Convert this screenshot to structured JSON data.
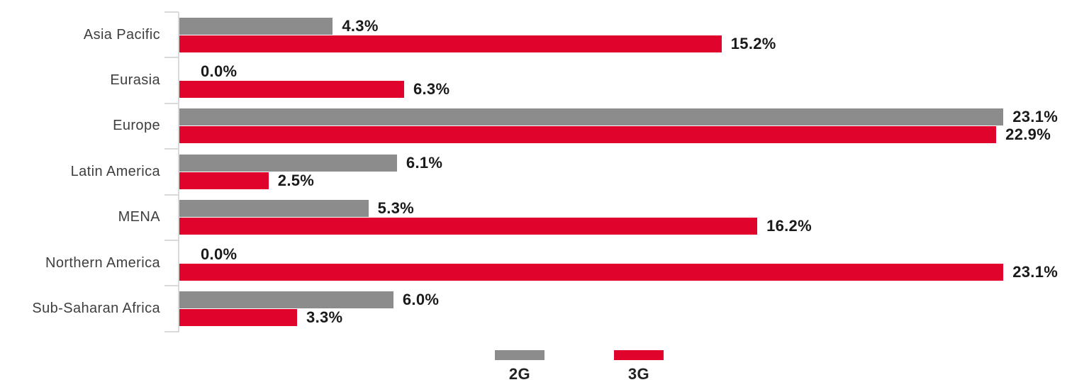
{
  "chart_data": {
    "type": "bar",
    "orientation": "horizontal",
    "title": "",
    "xlabel": "",
    "ylabel": "",
    "grid": false,
    "legend_position": "bottom",
    "xlim": [
      0,
      25.5
    ],
    "categories": [
      "Asia Pacific",
      "Eurasia",
      "Europe",
      "Latin America",
      "MENA",
      "Northern America",
      "Sub-Saharan Africa"
    ],
    "series": [
      {
        "name": "2G",
        "color": "#8c8c8c",
        "values": [
          4.3,
          0.0,
          23.1,
          6.1,
          5.3,
          0.0,
          6.0
        ],
        "labels": [
          "4.3%",
          "0.0%",
          "23.1%",
          "6.1%",
          "5.3%",
          "0.0%",
          "6.0%"
        ]
      },
      {
        "name": "3G",
        "color": "#e0032b",
        "values": [
          15.2,
          6.3,
          22.9,
          2.5,
          16.2,
          23.1,
          3.3
        ],
        "labels": [
          "15.2%",
          "6.3%",
          "22.9%",
          "2.5%",
          "16.2%",
          "23.1%",
          "3.3%"
        ]
      }
    ],
    "axis_color": "#d9d9d9"
  }
}
